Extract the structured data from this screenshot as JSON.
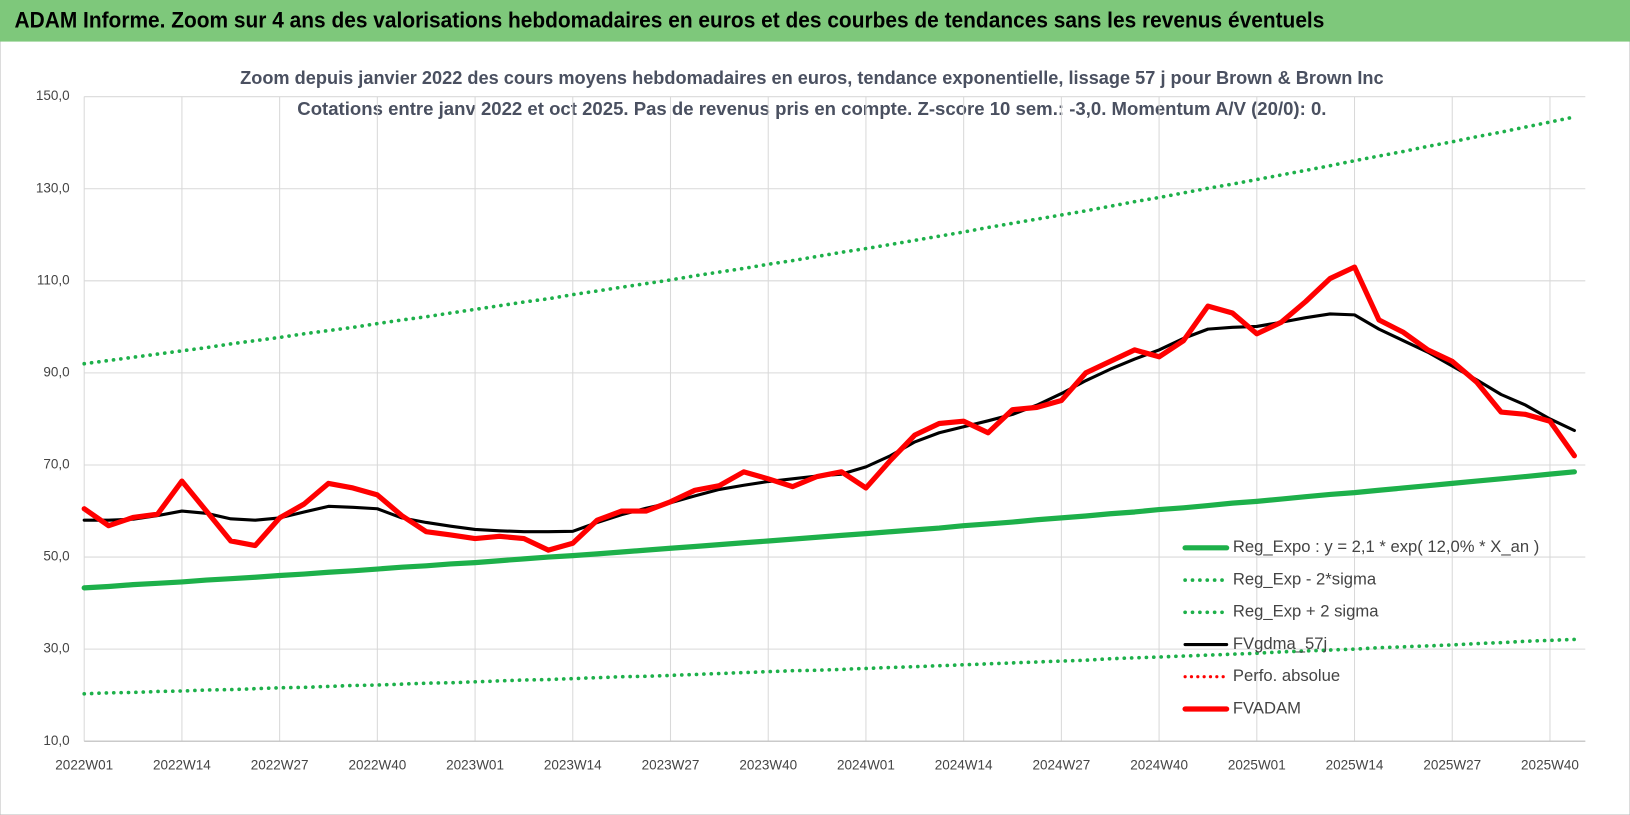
{
  "header": {
    "title": "ADAM Informe. Zoom sur 4 ans des valorisations hebdomadaires en euros et des courbes de tendances sans les revenus éventuels"
  },
  "chart_data": {
    "type": "line",
    "title": "Zoom depuis janvier 2022 des cours moyens hebdomadaires en euros, tendance exponentielle, lissage 57 j pour Brown & Brown Inc",
    "subtitle": "Cotations entre janv 2022 et oct 2025. Pas de revenus pris en compte. Z-score 10 sem.: -3,0.  Momentum A/V (20/0): 0.",
    "categories": [
      "2022W01",
      null,
      null,
      null,
      "2022W14",
      null,
      null,
      null,
      "2022W27",
      null,
      null,
      null,
      "2022W40",
      null,
      null,
      null,
      "2023W01",
      null,
      null,
      null,
      "2023W14",
      null,
      null,
      null,
      "2023W27",
      null,
      null,
      null,
      "2023W40",
      null,
      null,
      null,
      "2024W01",
      null,
      null,
      null,
      "2024W14",
      null,
      null,
      null,
      "2024W27",
      null,
      null,
      null,
      "2024W40",
      null,
      null,
      null,
      "2025W01",
      null,
      null,
      null,
      "2025W14",
      null,
      null,
      null,
      "2025W27",
      null,
      null,
      null,
      "2025W40",
      null
    ],
    "ylim": [
      10,
      150
    ],
    "yticks": [
      {
        "value": 10,
        "label": "10,0"
      },
      {
        "value": 30,
        "label": "30,0"
      },
      {
        "value": 50,
        "label": "50,0"
      },
      {
        "value": 70,
        "label": "70,0"
      },
      {
        "value": 90,
        "label": "90,0"
      },
      {
        "value": 110,
        "label": "110,0"
      },
      {
        "value": 130,
        "label": "130,0"
      },
      {
        "value": 150,
        "label": "150,0"
      }
    ],
    "grid": true,
    "legend": "lower-right",
    "series": [
      {
        "name": "Reg_Expo : y = 2,1 * exp( 12,0% * X_an )",
        "color": "#1db04a",
        "style": "solid",
        "width": 5,
        "values": [
          43.3,
          43.6,
          44.0,
          44.3,
          44.6,
          45.0,
          45.3,
          45.6,
          46.0,
          46.3,
          46.7,
          47.0,
          47.4,
          47.8,
          48.1,
          48.5,
          48.8,
          49.2,
          49.6,
          50.0,
          50.3,
          50.7,
          51.1,
          51.5,
          51.9,
          52.3,
          52.7,
          53.1,
          53.5,
          53.9,
          54.3,
          54.7,
          55.1,
          55.5,
          55.9,
          56.3,
          56.8,
          57.2,
          57.6,
          58.1,
          58.5,
          58.9,
          59.4,
          59.8,
          60.3,
          60.7,
          61.2,
          61.7,
          62.1,
          62.6,
          63.1,
          63.6,
          64.0,
          64.5,
          65.0,
          65.5,
          66.0,
          66.5,
          67.0,
          67.5,
          68.0,
          68.5
        ]
      },
      {
        "name": "Reg_Exp - 2*sigma",
        "color": "#1db04a",
        "style": "dotted",
        "width": 3.5,
        "values": [
          20.3,
          20.5,
          20.6,
          20.8,
          20.9,
          21.1,
          21.2,
          21.4,
          21.6,
          21.7,
          21.9,
          22.1,
          22.2,
          22.4,
          22.6,
          22.7,
          22.9,
          23.1,
          23.3,
          23.4,
          23.6,
          23.8,
          24.0,
          24.1,
          24.3,
          24.5,
          24.7,
          24.9,
          25.1,
          25.3,
          25.4,
          25.6,
          25.8,
          26.0,
          26.2,
          26.4,
          26.6,
          26.8,
          27.0,
          27.2,
          27.4,
          27.6,
          27.9,
          28.1,
          28.3,
          28.5,
          28.7,
          28.9,
          29.1,
          29.4,
          29.6,
          29.8,
          30.0,
          30.3,
          30.5,
          30.7,
          30.9,
          31.2,
          31.4,
          31.7,
          31.9,
          32.1
        ]
      },
      {
        "name": "Reg_Exp + 2 sigma",
        "color": "#1db04a",
        "style": "dotted",
        "width": 3.5,
        "values": [
          92.0,
          92.7,
          93.4,
          94.1,
          94.8,
          95.5,
          96.3,
          97.0,
          97.7,
          98.5,
          99.2,
          99.9,
          100.7,
          101.5,
          102.2,
          103.0,
          103.8,
          104.6,
          105.4,
          106.1,
          107.0,
          107.8,
          108.6,
          109.4,
          110.2,
          111.1,
          111.9,
          112.7,
          113.6,
          114.4,
          115.3,
          116.2,
          117.0,
          117.9,
          118.8,
          119.7,
          120.6,
          121.6,
          122.5,
          123.4,
          124.3,
          125.2,
          126.2,
          127.2,
          128.1,
          129.1,
          130.1,
          131.0,
          132.0,
          133.0,
          134.0,
          135.0,
          136.1,
          137.1,
          138.1,
          139.2,
          140.2,
          141.3,
          142.3,
          143.4,
          144.5,
          145.6
        ]
      },
      {
        "name": "FVgdma_57j",
        "color": "#000000",
        "style": "solid",
        "width": 3,
        "values": [
          58,
          58,
          58.2,
          59,
          60,
          59.5,
          58.3,
          58,
          58.5,
          59.8,
          61,
          60.8,
          60.5,
          58.5,
          57.5,
          56.7,
          56,
          55.7,
          55.5,
          55.5,
          55.6,
          57.5,
          59.2,
          60.6,
          61.8,
          63.3,
          64.7,
          65.6,
          66.4,
          67,
          67.6,
          68,
          69.6,
          72,
          75,
          77,
          78.3,
          79.6,
          81,
          83,
          85.5,
          88.3,
          90.8,
          93,
          95,
          97.5,
          99.5,
          99.9,
          100.1,
          101,
          102,
          102.8,
          102.6,
          99.5,
          97,
          94.5,
          91.5,
          88.5,
          85.3,
          83,
          80,
          77.5
        ]
      },
      {
        "name": "Perfo. absolue",
        "color": "#ff0000",
        "style": "dotted",
        "width": 3,
        "values": [
          null,
          null,
          null,
          null,
          null,
          null,
          null,
          null,
          null,
          null,
          null,
          null,
          null,
          null,
          null,
          null,
          null,
          null,
          null,
          null,
          null,
          null,
          null,
          null,
          null,
          null,
          null,
          null,
          null,
          null,
          null,
          null,
          null,
          null,
          null,
          null,
          null,
          null,
          null,
          null,
          null,
          null,
          null,
          null,
          null,
          null,
          null,
          null,
          null,
          null,
          null,
          null,
          null,
          null,
          null,
          null,
          null,
          null,
          null,
          null,
          null,
          null
        ]
      },
      {
        "name": "FVADAM",
        "color": "#ff0000",
        "style": "solid",
        "width": 5,
        "values": [
          60.5,
          56.8,
          58.6,
          59.3,
          66.5,
          60,
          53.5,
          52.5,
          58.5,
          61.5,
          66,
          65,
          63.5,
          59,
          55.5,
          54.8,
          54,
          54.5,
          54,
          51.5,
          53,
          58,
          60,
          60,
          62,
          64.5,
          65.5,
          68.5,
          67,
          65.3,
          67.5,
          68.5,
          65,
          71,
          76.5,
          79,
          79.5,
          77,
          82,
          82.5,
          84,
          90,
          92.5,
          95,
          93.5,
          97,
          104.5,
          103,
          98.5,
          101,
          105.5,
          110.5,
          113,
          101.5,
          98.8,
          95,
          92.5,
          88,
          81.5,
          81,
          79.5,
          72
        ]
      }
    ]
  }
}
